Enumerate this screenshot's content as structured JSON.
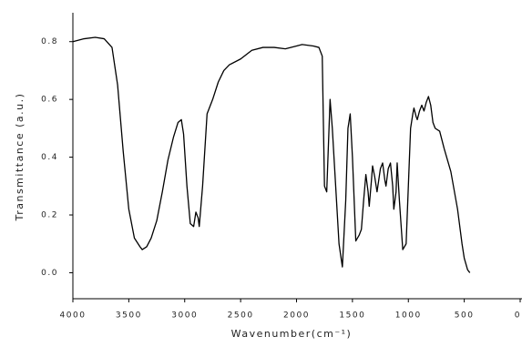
{
  "chart_data": {
    "type": "line",
    "xlabel": "Wavenumber(cm⁻¹)",
    "ylabel": "Transmittance (a.u.)",
    "xlim": [
      4000,
      0
    ],
    "xticks": [
      4000,
      3500,
      3000,
      2500,
      2000,
      1500,
      1000,
      500,
      0
    ],
    "ylim": [
      -0.09,
      0.9
    ],
    "yticks": [
      {
        "value": 0,
        "label": "0.0"
      },
      0.2,
      0.4,
      0.6,
      0.8
    ],
    "grid": false,
    "series": [
      {
        "color": "#000000",
        "x": [
          4000,
          3900,
          3800,
          3720,
          3650,
          3600,
          3550,
          3500,
          3450,
          3400,
          3380,
          3340,
          3300,
          3250,
          3200,
          3150,
          3100,
          3060,
          3030,
          3010,
          2980,
          2950,
          2920,
          2900,
          2880,
          2870,
          2840,
          2800,
          2750,
          2700,
          2650,
          2600,
          2500,
          2400,
          2300,
          2200,
          2100,
          2000,
          1950,
          1850,
          1800,
          1770,
          1750,
          1730,
          1700,
          1680,
          1650,
          1620,
          1590,
          1560,
          1540,
          1520,
          1500,
          1470,
          1440,
          1420,
          1400,
          1380,
          1360,
          1350,
          1330,
          1320,
          1300,
          1280,
          1250,
          1230,
          1210,
          1200,
          1180,
          1160,
          1140,
          1130,
          1110,
          1100,
          1080,
          1050,
          1020,
          1000,
          980,
          960,
          950,
          930,
          920,
          900,
          880,
          860,
          840,
          820,
          800,
          780,
          760,
          720,
          680,
          620,
          560,
          520,
          500,
          470,
          450
        ],
        "values": [
          0.8,
          0.81,
          0.815,
          0.81,
          0.78,
          0.65,
          0.42,
          0.22,
          0.12,
          0.09,
          0.08,
          0.09,
          0.12,
          0.18,
          0.28,
          0.39,
          0.47,
          0.52,
          0.53,
          0.48,
          0.3,
          0.17,
          0.16,
          0.21,
          0.19,
          0.16,
          0.3,
          0.55,
          0.6,
          0.66,
          0.7,
          0.72,
          0.74,
          0.77,
          0.78,
          0.78,
          0.775,
          0.785,
          0.79,
          0.785,
          0.78,
          0.75,
          0.3,
          0.28,
          0.6,
          0.5,
          0.3,
          0.1,
          0.02,
          0.25,
          0.5,
          0.55,
          0.4,
          0.11,
          0.13,
          0.15,
          0.25,
          0.34,
          0.28,
          0.23,
          0.32,
          0.37,
          0.33,
          0.28,
          0.36,
          0.38,
          0.32,
          0.3,
          0.36,
          0.38,
          0.3,
          0.22,
          0.28,
          0.38,
          0.25,
          0.08,
          0.1,
          0.3,
          0.5,
          0.55,
          0.57,
          0.54,
          0.53,
          0.56,
          0.58,
          0.56,
          0.59,
          0.61,
          0.58,
          0.52,
          0.5,
          0.49,
          0.43,
          0.35,
          0.22,
          0.1,
          0.05,
          0.01,
          0.0
        ]
      }
    ]
  }
}
